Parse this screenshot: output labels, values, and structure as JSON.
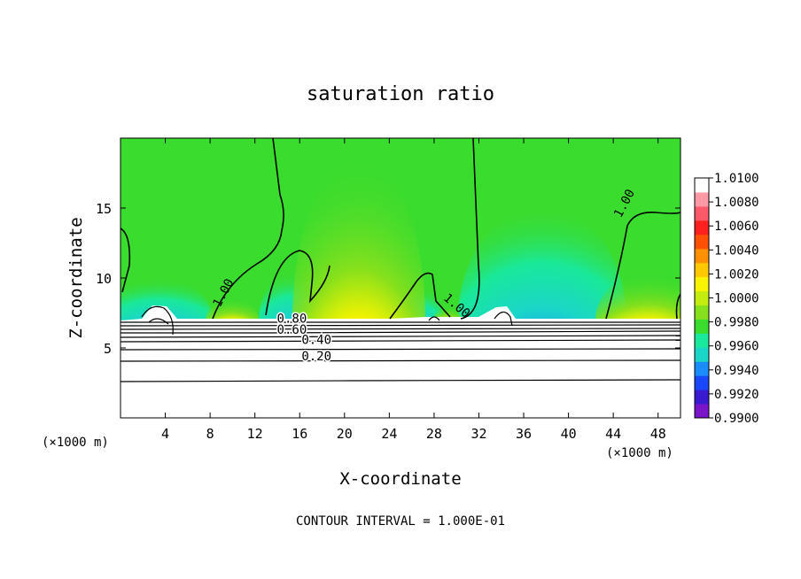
{
  "chart_data": {
    "type": "heatmap",
    "title": "saturation ratio",
    "xlabel": "X-coordinate",
    "ylabel": "Z-coordinate",
    "x_unit_left": "(×1000 m)",
    "x_unit_right": "(×1000 m)",
    "xlim": [
      0,
      50
    ],
    "ylim": [
      0,
      20
    ],
    "x_ticks": [
      4,
      8,
      12,
      16,
      20,
      24,
      28,
      32,
      36,
      40,
      44,
      48
    ],
    "y_ticks": [
      5,
      10,
      15
    ],
    "colorbar": {
      "labels": [
        "1.0100",
        "1.0080",
        "1.0060",
        "1.0040",
        "1.0020",
        "1.0000",
        "0.9980",
        "0.9960",
        "0.9940",
        "0.9920",
        "0.9900"
      ],
      "min": 0.99,
      "max": 1.01,
      "colors": [
        "#7a14c8",
        "#3a1bd0",
        "#1a48ff",
        "#1a8cff",
        "#1ad6c8",
        "#1ae89a",
        "#3adc2e",
        "#86e01c",
        "#c4ec10",
        "#f8f400",
        "#ffc800",
        "#ff9000",
        "#ff5000",
        "#ff2020",
        "#ff5a6a",
        "#ff9aa6",
        "#ffffff"
      ]
    },
    "contour_labels": [
      {
        "text": "1.00",
        "x": 9.5,
        "z": 8.8
      },
      {
        "text": "1.00",
        "x": 29.8,
        "z": 7.8
      },
      {
        "text": "1.00",
        "x": 45.3,
        "z": 15.2
      },
      {
        "text": "0.80",
        "x": 15.3,
        "z": 6.8
      },
      {
        "text": "0.60",
        "x": 15.3,
        "z": 6.0
      },
      {
        "text": "0.40",
        "x": 17.5,
        "z": 5.3
      },
      {
        "text": "0.20",
        "x": 17.5,
        "z": 4.1
      }
    ],
    "contour_interval_label": "CONTOUR INTERVAL = 1.000E-01"
  }
}
